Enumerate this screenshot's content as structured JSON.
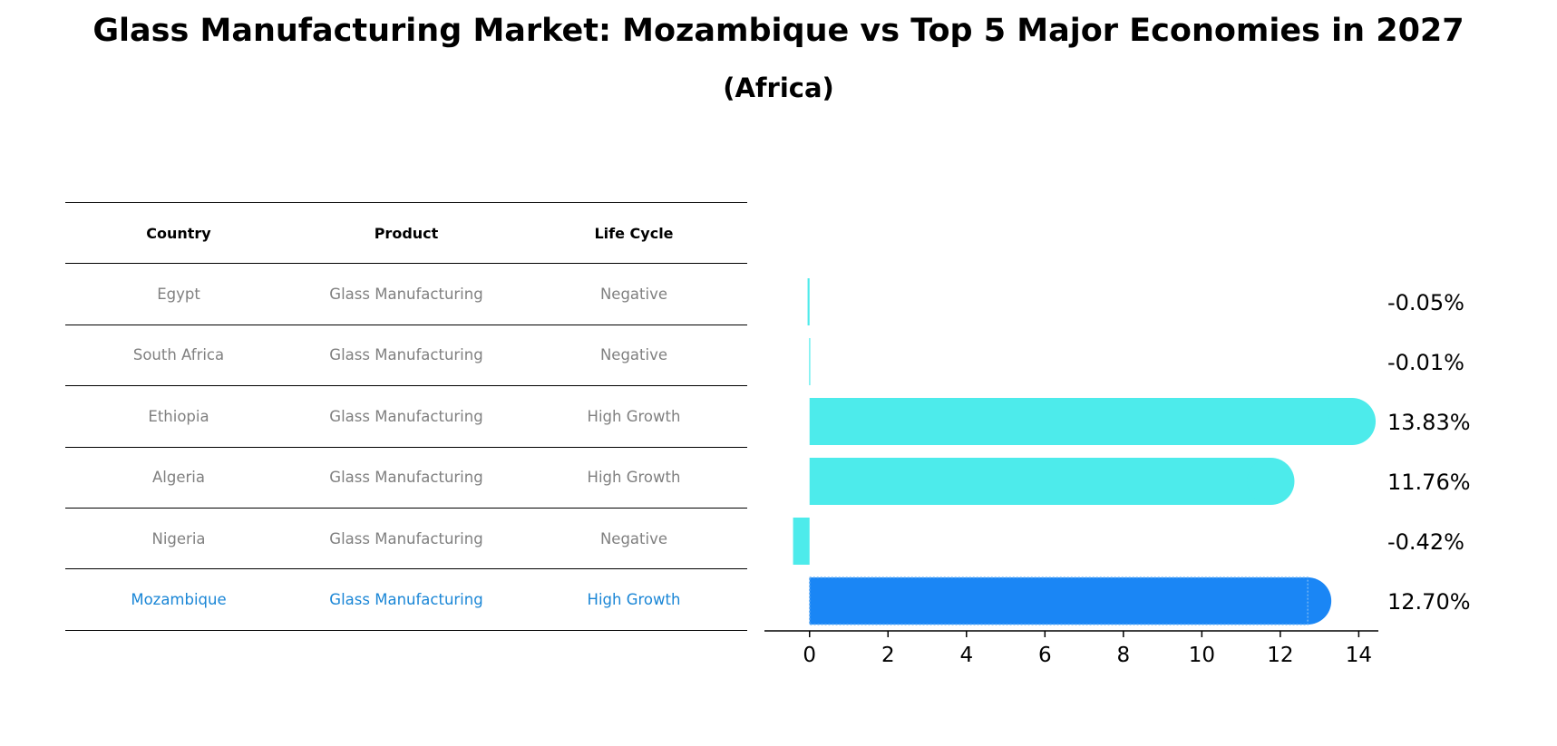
{
  "title": "Glass Manufacturing Market: Mozambique vs Top 5 Major Economies in 2027",
  "subtitle": "(Africa)",
  "table": {
    "headers": [
      "Country",
      "Product",
      "Life Cycle"
    ],
    "rows": [
      [
        "Egypt",
        "Glass Manufacturing",
        "Negative"
      ],
      [
        "South Africa",
        "Glass Manufacturing",
        "Negative"
      ],
      [
        "Ethiopia",
        "Glass Manufacturing",
        "High Growth"
      ],
      [
        "Algeria",
        "Glass Manufacturing",
        "High Growth"
      ],
      [
        "Nigeria",
        "Glass Manufacturing",
        "Negative"
      ],
      [
        "Mozambique",
        "Glass Manufacturing",
        "High Growth"
      ]
    ],
    "highlight_row": 5
  },
  "chart_data": {
    "type": "bar",
    "orientation": "horizontal",
    "categories": [
      "Egypt",
      "South Africa",
      "Ethiopia",
      "Algeria",
      "Nigeria",
      "Mozambique"
    ],
    "values": [
      -0.05,
      -0.01,
      13.83,
      11.76,
      -0.42,
      12.7
    ],
    "labels": [
      "-0.05%",
      "-0.01%",
      "13.83%",
      "11.76%",
      "-0.42%",
      "12.70%"
    ],
    "xlim": [
      -1.15,
      14.5
    ],
    "xticks": [
      0,
      2,
      4,
      6,
      8,
      10,
      12,
      14
    ],
    "colors": {
      "default": "#4debeb",
      "highlight": "#1a86f5"
    },
    "highlight_index": 5
  }
}
